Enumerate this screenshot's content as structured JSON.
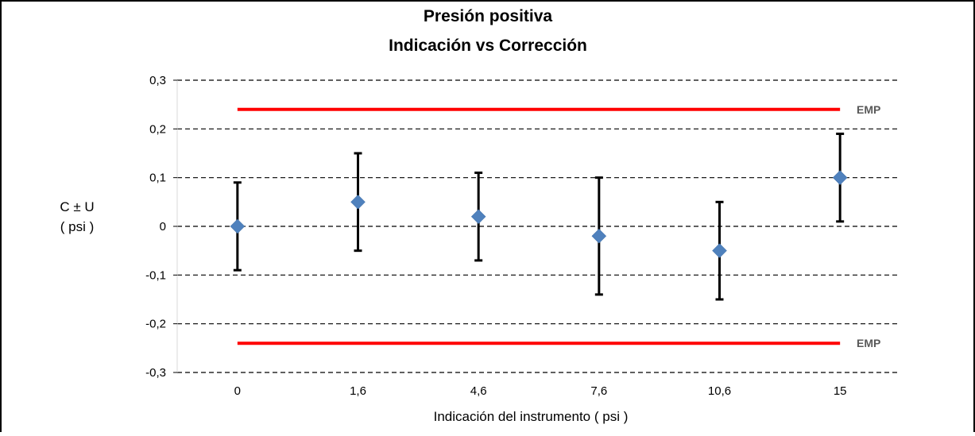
{
  "chart_data": {
    "type": "scatter",
    "title": "Presión positiva",
    "subtitle": "Indicación vs Corrección",
    "xlabel": "Indicación del instrumento ( psi )",
    "ylabel_line1": "C ± U",
    "ylabel_line2": "( psi )",
    "categories": [
      "0",
      "1,6",
      "4,6",
      "7,6",
      "10,6",
      "15"
    ],
    "values": [
      0,
      0.05,
      0.02,
      -0.02,
      -0.05,
      0.1
    ],
    "error_low": [
      -0.09,
      -0.05,
      -0.07,
      -0.14,
      -0.15,
      0.01
    ],
    "error_high": [
      0.09,
      0.15,
      0.11,
      0.1,
      0.05,
      0.19
    ],
    "ylim": [
      -0.3,
      0.3
    ],
    "yticks": [
      0.3,
      0.2,
      0.1,
      0,
      -0.1,
      -0.2,
      -0.3
    ],
    "ytick_labels": [
      "0,3",
      "0,2",
      "0,1",
      "0",
      "-0,1",
      "-0,2",
      "-0,3"
    ],
    "grid": "dashed horizontal",
    "limits": [
      {
        "label": "EMP",
        "value": 0.24
      },
      {
        "label": "EMP",
        "value": -0.24
      }
    ],
    "colors": {
      "marker": "#4f81bd",
      "error_bar": "#000000",
      "limit_line": "#ff0000",
      "grid": "#000000"
    }
  }
}
